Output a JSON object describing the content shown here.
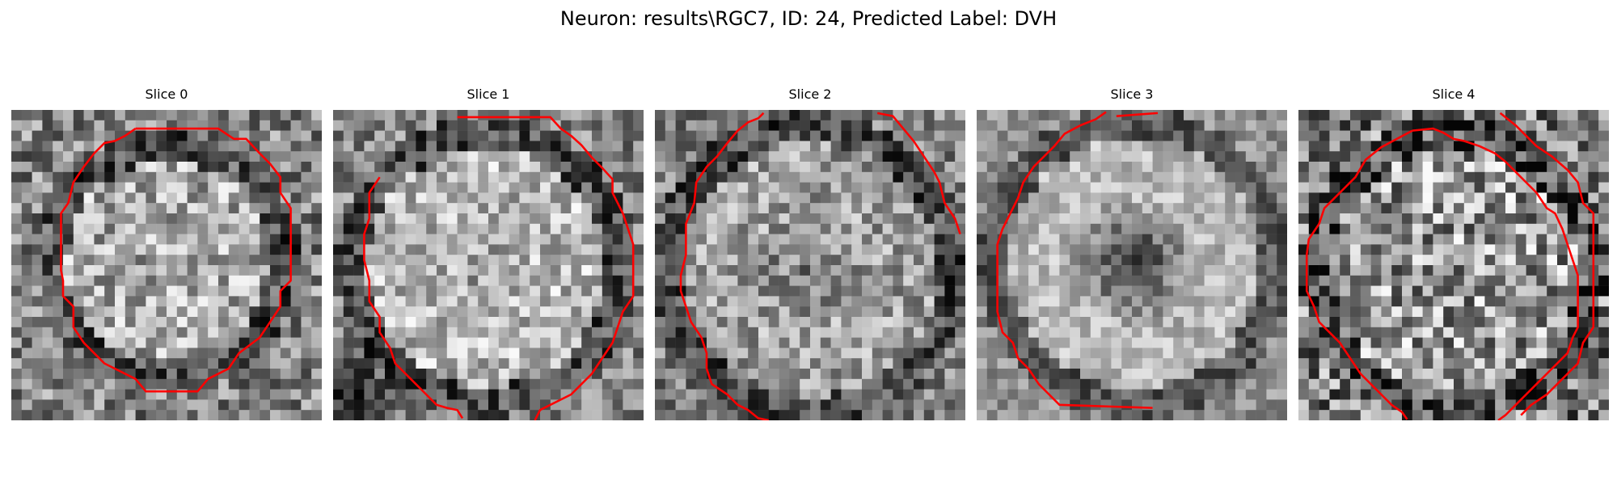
{
  "figure": {
    "title": "Neuron: results\\RGC7, ID: 24, Predicted Label: DVH"
  },
  "slices": [
    {
      "label": "Slice 0",
      "contour_color": "#ff0000"
    },
    {
      "label": "Slice 1",
      "contour_color": "#ff0000"
    },
    {
      "label": "Slice 2",
      "contour_color": "#ff0000"
    },
    {
      "label": "Slice 3",
      "contour_color": "#ff0000"
    },
    {
      "label": "Slice 4",
      "contour_color": "#ff0000"
    }
  ]
}
